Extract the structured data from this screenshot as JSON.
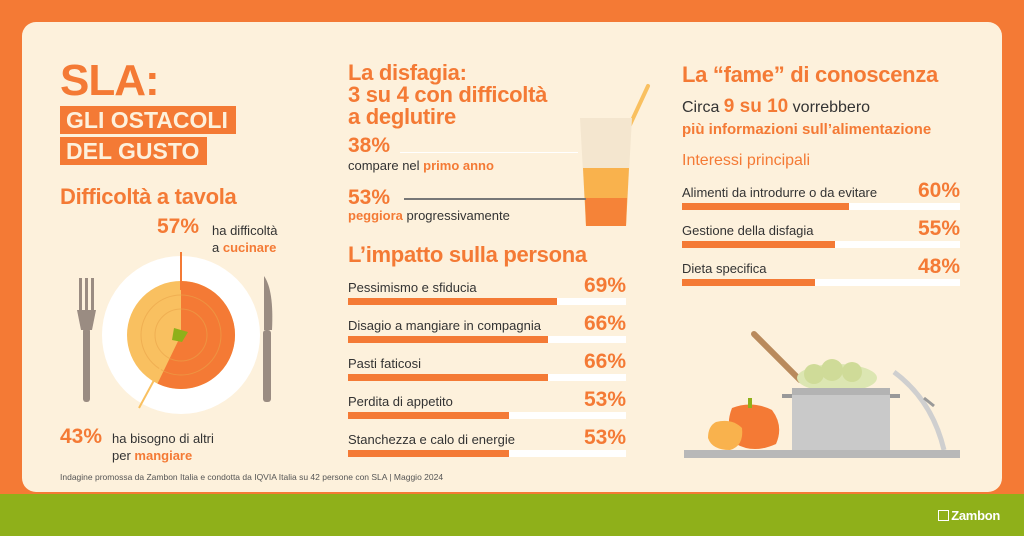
{
  "colors": {
    "accent": "#f47a35",
    "background": "#fdf1dc",
    "band": "#8fb01a",
    "bar_track": "#ffffff"
  },
  "left": {
    "title": "SLA:",
    "tag_line1": "GLI OSTACOLI",
    "tag_line2": "DEL GUSTO",
    "section_title": "Difficoltà a tavola",
    "stat1": {
      "pct": "57%",
      "text1": "ha difficoltà",
      "text2": "a ",
      "text2_bold": "cucinare",
      "value": 57
    },
    "stat2": {
      "pct": "43%",
      "text1": "ha bisogno di altri",
      "text2": "per ",
      "text2_bold": "mangiare",
      "value": 43
    }
  },
  "middle": {
    "title_line1": "La disfagia:",
    "title_line2": "3 su 4 con difficoltà",
    "title_line3": "a deglutire",
    "stat1": {
      "pct": "38%",
      "text": "compare nel ",
      "bold": "primo anno"
    },
    "stat2": {
      "pct": "53%",
      "bold": "peggiora",
      "text": " progressivamente"
    },
    "impact_title": "L’impatto sulla persona",
    "impact_rows": [
      {
        "label": "Pessimismo e sfiducia",
        "pct": "69%",
        "value": 69
      },
      {
        "label": "Disagio a mangiare in compagnia",
        "pct": "66%",
        "value": 66
      },
      {
        "label": "Pasti faticosi",
        "pct": "66%",
        "value": 66
      },
      {
        "label": "Perdita di appetito",
        "pct": "53%",
        "value": 53
      },
      {
        "label": "Stanchezza e calo di energie",
        "pct": "53%",
        "value": 53
      }
    ]
  },
  "right": {
    "title": "La “fame” di conoscenza",
    "line1_pre": "Circa ",
    "line1_bold": "9 su 10",
    "line1_post": " vorrebbero",
    "line2": "più informazioni sull’alimentazione",
    "interests_title": "Interessi principali",
    "interest_rows": [
      {
        "label": "Alimenti da introdurre o da evitare",
        "pct": "60%",
        "value": 60
      },
      {
        "label": "Gestione della disfagia",
        "pct": "55%",
        "value": 55
      },
      {
        "label": "Dieta specifica",
        "pct": "48%",
        "value": 48
      }
    ]
  },
  "footnote": "Indagine promossa da Zambon Italia e condotta da IQVIA Italia su 42 persone con SLA | Maggio 2024",
  "logo": "Zambon",
  "icons": [
    "fork-icon",
    "plate-icon",
    "knife-icon",
    "juice-glass-icon",
    "cooking-pot-icon",
    "peppers-icon"
  ]
}
